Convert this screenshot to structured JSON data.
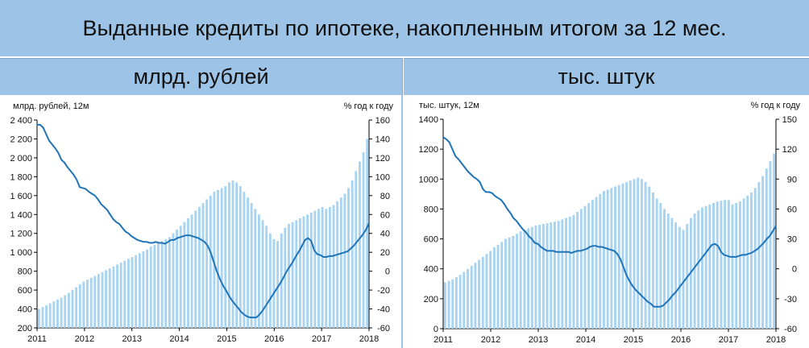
{
  "title": "Выданные кредиты по ипотеке, накопленным итогом за 12 мес.",
  "headers": {
    "left": "млрд. рублей",
    "right": "тыс. штук"
  },
  "colors": {
    "header_bg": "#9dc3e6",
    "bars": "#a8d4f2",
    "line": "#1f73b7"
  },
  "chart_data": [
    {
      "type": "bar",
      "left_axis_label": "млрд. рублей, 12м",
      "right_axis_label": "% год к году",
      "x_labels": [
        "2011",
        "2012",
        "2013",
        "2014",
        "2015",
        "2016",
        "2017",
        "2018"
      ],
      "y_left": {
        "range": [
          200,
          2400
        ],
        "ticks": [
          "200",
          "400",
          "600",
          "800",
          "1 000",
          "1 200",
          "1 400",
          "1 600",
          "1 800",
          "2 000",
          "2 200",
          "2 400"
        ]
      },
      "y_right": {
        "range": [
          -60,
          160
        ],
        "ticks": [
          "-60",
          "-40",
          "-20",
          "0",
          "20",
          "40",
          "60",
          "80",
          "100",
          "120",
          "140",
          "160"
        ]
      },
      "series": [
        {
          "kind": "bar",
          "axis": "left",
          "values": [
            400,
            420,
            440,
            460,
            480,
            500,
            520,
            545,
            570,
            600,
            630,
            660,
            690,
            710,
            730,
            750,
            770,
            790,
            810,
            830,
            850,
            870,
            890,
            910,
            930,
            950,
            970,
            990,
            1010,
            1030,
            1060,
            1080,
            1100,
            1120,
            1140,
            1160,
            1200,
            1240,
            1280,
            1320,
            1360,
            1400,
            1440,
            1480,
            1520,
            1560,
            1600,
            1640,
            1660,
            1680,
            1700,
            1740,
            1760,
            1740,
            1700,
            1640,
            1580,
            1520,
            1460,
            1400,
            1340,
            1280,
            1200,
            1140,
            1120,
            1200,
            1260,
            1300,
            1320,
            1340,
            1360,
            1380,
            1400,
            1420,
            1440,
            1460,
            1480,
            1460,
            1480,
            1500,
            1540,
            1580,
            1620,
            1680,
            1760,
            1860,
            1960,
            2060,
            2200
          ]
        },
        {
          "kind": "line",
          "axis": "right",
          "values": [
            155,
            155,
            152,
            145,
            138,
            134,
            130,
            125,
            118,
            115,
            110,
            106,
            102,
            97,
            89,
            88,
            87,
            84,
            82,
            80,
            76,
            71,
            68,
            65,
            60,
            55,
            52,
            50,
            46,
            42,
            40,
            37,
            35,
            33,
            32,
            31,
            31,
            30,
            30,
            31,
            30,
            30,
            29,
            31,
            33,
            33,
            35,
            36,
            37,
            38,
            38,
            37,
            36,
            35,
            33,
            31,
            27,
            20,
            10,
            0,
            -8,
            -15,
            -20,
            -26,
            -31,
            -35,
            -39,
            -43,
            -46,
            -48,
            -49,
            -49,
            -49,
            -46,
            -42,
            -37,
            -32,
            -27,
            -22,
            -17,
            -12,
            -6,
            0,
            5,
            10,
            16,
            21,
            27,
            33,
            35,
            32,
            22,
            18,
            17,
            15,
            15,
            16,
            16,
            17,
            18,
            19,
            20,
            21,
            24,
            27,
            31,
            35,
            39,
            44,
            51
          ]
        }
      ]
    },
    {
      "type": "bar",
      "left_axis_label": "тыс. штук, 12м",
      "right_axis_label": "% год к году",
      "x_labels": [
        "2011",
        "2012",
        "2013",
        "2014",
        "2015",
        "2016",
        "2017",
        "2018"
      ],
      "y_left": {
        "range": [
          0,
          1400
        ],
        "ticks": [
          "0",
          "200",
          "400",
          "600",
          "800",
          "1000",
          "1200",
          "1400"
        ]
      },
      "y_right": {
        "range": [
          -60,
          150
        ],
        "ticks": [
          "-60",
          "-30",
          "0",
          "30",
          "60",
          "90",
          "120",
          "150"
        ]
      },
      "series": [
        {
          "kind": "bar",
          "axis": "left",
          "values": [
            310,
            320,
            330,
            345,
            360,
            380,
            400,
            420,
            440,
            460,
            480,
            500,
            520,
            545,
            560,
            580,
            600,
            610,
            620,
            635,
            650,
            660,
            670,
            680,
            690,
            695,
            700,
            705,
            710,
            715,
            720,
            730,
            740,
            750,
            760,
            780,
            800,
            820,
            840,
            860,
            880,
            900,
            920,
            930,
            940,
            950,
            960,
            970,
            980,
            990,
            1000,
            1010,
            1000,
            980,
            950,
            910,
            870,
            840,
            800,
            770,
            740,
            710,
            680,
            660,
            700,
            740,
            770,
            790,
            810,
            820,
            830,
            840,
            850,
            855,
            860,
            860,
            830,
            840,
            850,
            870,
            890,
            910,
            940,
            980,
            1020,
            1070,
            1120,
            1170
          ]
        },
        {
          "kind": "line",
          "axis": "right",
          "values": [
            132,
            130,
            127,
            120,
            113,
            110,
            106,
            102,
            98,
            95,
            92,
            90,
            87,
            80,
            77,
            77,
            76,
            73,
            71,
            69,
            65,
            60,
            56,
            51,
            48,
            44,
            40,
            37,
            33,
            30,
            26,
            25,
            22,
            20,
            18,
            18,
            18,
            17,
            17,
            17,
            17,
            17,
            16,
            17,
            18,
            18,
            19,
            20,
            22,
            23,
            23,
            22,
            22,
            21,
            20,
            19,
            18,
            15,
            10,
            2,
            -6,
            -12,
            -17,
            -21,
            -24,
            -27,
            -30,
            -33,
            -35,
            -38,
            -38,
            -38,
            -37,
            -34,
            -31,
            -27,
            -24,
            -20,
            -16,
            -12,
            -8,
            -4,
            0,
            4,
            8,
            12,
            16,
            20,
            24,
            25,
            23,
            17,
            14,
            13,
            12,
            12,
            12,
            13,
            14,
            14,
            15,
            16,
            18,
            20,
            23,
            26,
            30,
            33,
            38,
            43
          ]
        }
      ]
    }
  ]
}
